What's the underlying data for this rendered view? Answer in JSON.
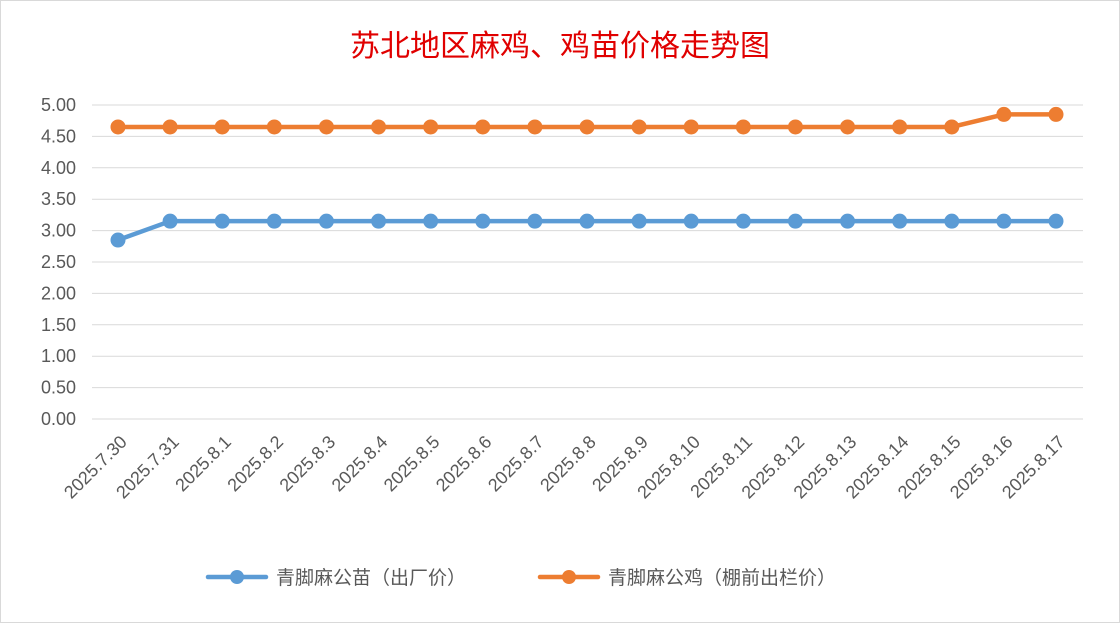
{
  "chart_data": {
    "type": "line",
    "title": "苏北地区麻鸡、鸡苗价格走势图",
    "xlabel": "",
    "ylabel": "",
    "ylim": [
      0,
      5
    ],
    "y_ticks": [
      "0.00",
      "0.50",
      "1.00",
      "1.50",
      "2.00",
      "2.50",
      "3.00",
      "3.50",
      "4.00",
      "4.50",
      "5.00"
    ],
    "grid": true,
    "legend_position": "bottom",
    "categories": [
      "2025.7.30",
      "2025.7.31",
      "2025.8.1",
      "2025.8.2",
      "2025.8.3",
      "2025.8.4",
      "2025.8.5",
      "2025.8.6",
      "2025.8.7",
      "2025.8.8",
      "2025.8.9",
      "2025.8.10",
      "2025.8.11",
      "2025.8.12",
      "2025.8.13",
      "2025.8.14",
      "2025.8.15",
      "2025.8.16",
      "2025.8.17"
    ],
    "series": [
      {
        "name": "青脚麻公苗（出厂价）",
        "color": "#5b9bd5",
        "values": [
          2.85,
          3.15,
          3.15,
          3.15,
          3.15,
          3.15,
          3.15,
          3.15,
          3.15,
          3.15,
          3.15,
          3.15,
          3.15,
          3.15,
          3.15,
          3.15,
          3.15,
          3.15,
          3.15
        ]
      },
      {
        "name": "青脚麻公鸡（棚前出栏价）",
        "color": "#ed7d31",
        "values": [
          4.65,
          4.65,
          4.65,
          4.65,
          4.65,
          4.65,
          4.65,
          4.65,
          4.65,
          4.65,
          4.65,
          4.65,
          4.65,
          4.65,
          4.65,
          4.65,
          4.65,
          4.85,
          4.85
        ]
      }
    ]
  }
}
